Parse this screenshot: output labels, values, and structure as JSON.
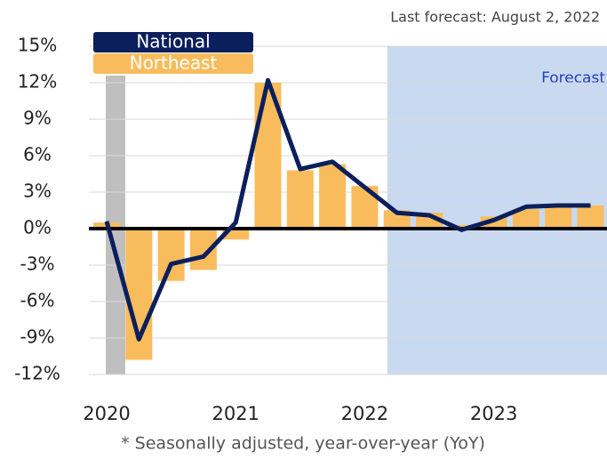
{
  "chart_data": {
    "type": "bar_line",
    "annotation": "Last forecast: August 2, 2022",
    "forecast_label": "Forecast",
    "footnote": "* Seasonally adjusted, year-over-year (YoY)",
    "categories": [
      "2020",
      null,
      null,
      null,
      "2021",
      null,
      null,
      null,
      "2022",
      null,
      null,
      null,
      "2023",
      null,
      null,
      null
    ],
    "series": [
      {
        "name": "Northeast",
        "color": "#f9bc5c",
        "kind": "bar",
        "values": [
          0.5,
          -10.8,
          -4.3,
          -3.4,
          -0.9,
          12.0,
          4.8,
          5.3,
          3.5,
          1.5,
          1.3,
          0.3,
          1.0,
          1.6,
          1.8,
          1.9
        ]
      },
      {
        "name": "National",
        "color": "#0b1f5c",
        "kind": "line",
        "values": [
          0.6,
          -9.1,
          -2.9,
          -2.3,
          0.5,
          12.2,
          4.9,
          5.5,
          3.4,
          1.3,
          1.1,
          -0.1,
          0.7,
          1.8,
          1.9,
          1.9
        ]
      }
    ],
    "ylim": [
      -12,
      15
    ],
    "yticks": [
      {
        "value": -12,
        "label": "-12%"
      },
      {
        "value": -9,
        "label": "-9%"
      },
      {
        "value": -6,
        "label": "-6%"
      },
      {
        "value": -3,
        "label": "-3%"
      },
      {
        "value": 0,
        "label": "0%"
      },
      {
        "value": 3,
        "label": "3%"
      },
      {
        "value": 6,
        "label": "6%"
      },
      {
        "value": 9,
        "label": "9%"
      },
      {
        "value": 12,
        "label": "12%"
      },
      {
        "value": 15,
        "label": "15%"
      }
    ],
    "grid": true
  }
}
